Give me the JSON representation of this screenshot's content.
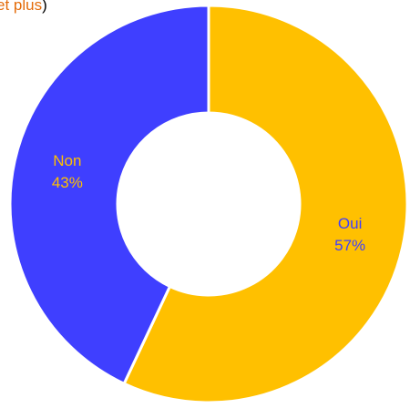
{
  "chart_data": {
    "type": "donut",
    "title_parts": [
      "et plus",
      ")"
    ],
    "title_colors": [
      "#E46C0A",
      "#000000"
    ],
    "categories": [
      "Oui",
      "Non"
    ],
    "values": [
      57,
      43
    ],
    "value_labels": [
      "57%",
      "43%"
    ],
    "colors": [
      "#FFC000",
      "#3F3FFF"
    ],
    "label_colors": [
      "#3F3FFF",
      "#FFC000"
    ]
  }
}
